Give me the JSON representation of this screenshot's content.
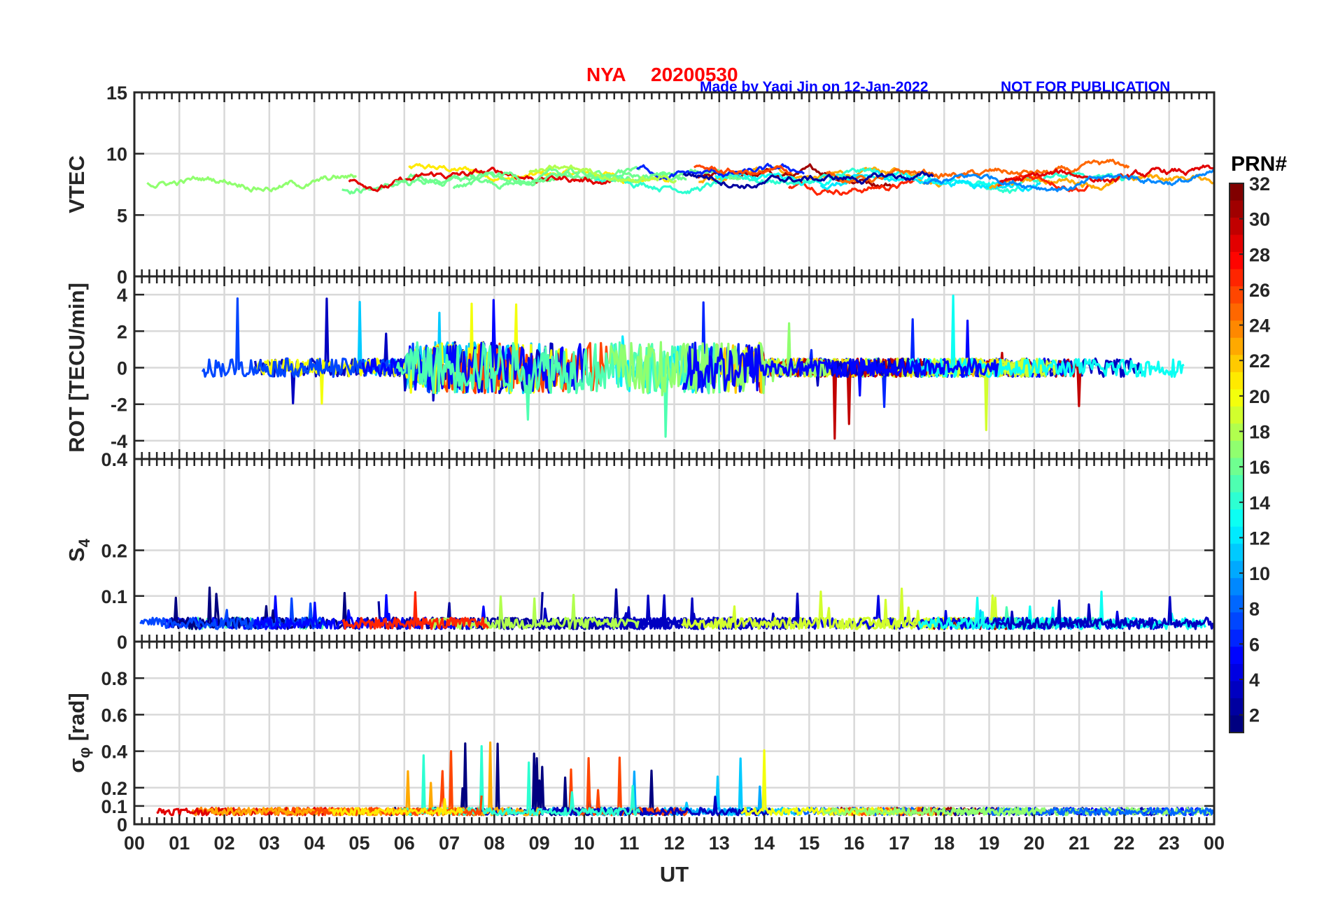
{
  "header": {
    "station": "NYA",
    "date": "20200530",
    "credit": "Made by Yaqi Jin on 12-Jan-2022",
    "notice": "NOT FOR PUBLICATION"
  },
  "chart_data": [
    {
      "type": "line",
      "id": "vtec",
      "ylabel": "VTEC",
      "ylim": [
        0,
        15
      ],
      "yticks": [
        0,
        5,
        10,
        15
      ],
      "ytick_labels": [
        "0",
        "5",
        "10",
        "15"
      ],
      "baseline": 8,
      "typical_range": [
        5,
        12
      ],
      "grid": true
    },
    {
      "type": "line",
      "id": "rot",
      "ylabel": "ROT [TECU/min]",
      "ylim": [
        -5,
        5
      ],
      "yticks": [
        -4,
        -2,
        0,
        2,
        4
      ],
      "ytick_labels": [
        "-4",
        "-2",
        "0",
        "2",
        "4"
      ],
      "baseline": 0,
      "typical_range": [
        -5,
        5
      ],
      "grid": true
    },
    {
      "type": "line",
      "id": "s4",
      "ylabel": "S4",
      "ylabel_main": "S",
      "ylabel_sub": "4",
      "ylim": [
        0,
        0.4
      ],
      "yticks": [
        0,
        0.1,
        0.2,
        0.4
      ],
      "ytick_labels": [
        "0",
        "0.1",
        "0.2",
        "0.4"
      ],
      "baseline": 0.04,
      "typical_range": [
        0.02,
        0.14
      ],
      "grid": true
    },
    {
      "type": "line",
      "id": "sigma_phi",
      "ylabel": "σφ [rad]",
      "ylabel_main": "σ",
      "ylabel_sub": "φ",
      "ylabel_unit": " [rad]",
      "ylim": [
        0,
        1
      ],
      "yticks": [
        0,
        0.1,
        0.2,
        0.4,
        0.6,
        0.8
      ],
      "ytick_labels": [
        "0",
        "0.1",
        "0.2",
        "0.4",
        "0.6",
        "0.8"
      ],
      "baseline": 0.07,
      "typical_range": [
        0.03,
        1.0
      ],
      "grid": true
    }
  ],
  "xaxis": {
    "label": "UT",
    "range": [
      0,
      24
    ],
    "ticks": [
      0,
      1,
      2,
      3,
      4,
      5,
      6,
      7,
      8,
      9,
      10,
      11,
      12,
      13,
      14,
      15,
      16,
      17,
      18,
      19,
      20,
      21,
      22,
      23,
      24
    ],
    "tick_labels": [
      "00",
      "01",
      "02",
      "03",
      "04",
      "05",
      "06",
      "07",
      "08",
      "09",
      "10",
      "11",
      "12",
      "13",
      "14",
      "15",
      "16",
      "17",
      "18",
      "19",
      "20",
      "21",
      "22",
      "23",
      "00"
    ]
  },
  "colorbar": {
    "title": "PRN#",
    "range": [
      1,
      32
    ],
    "ticks": [
      2,
      4,
      6,
      8,
      10,
      12,
      14,
      16,
      18,
      20,
      22,
      24,
      26,
      28,
      30,
      32
    ],
    "tick_labels": [
      "2",
      "4",
      "6",
      "8",
      "10",
      "12",
      "14",
      "16",
      "18",
      "20",
      "22",
      "24",
      "26",
      "28",
      "30",
      "32"
    ],
    "colormap": "jet"
  }
}
